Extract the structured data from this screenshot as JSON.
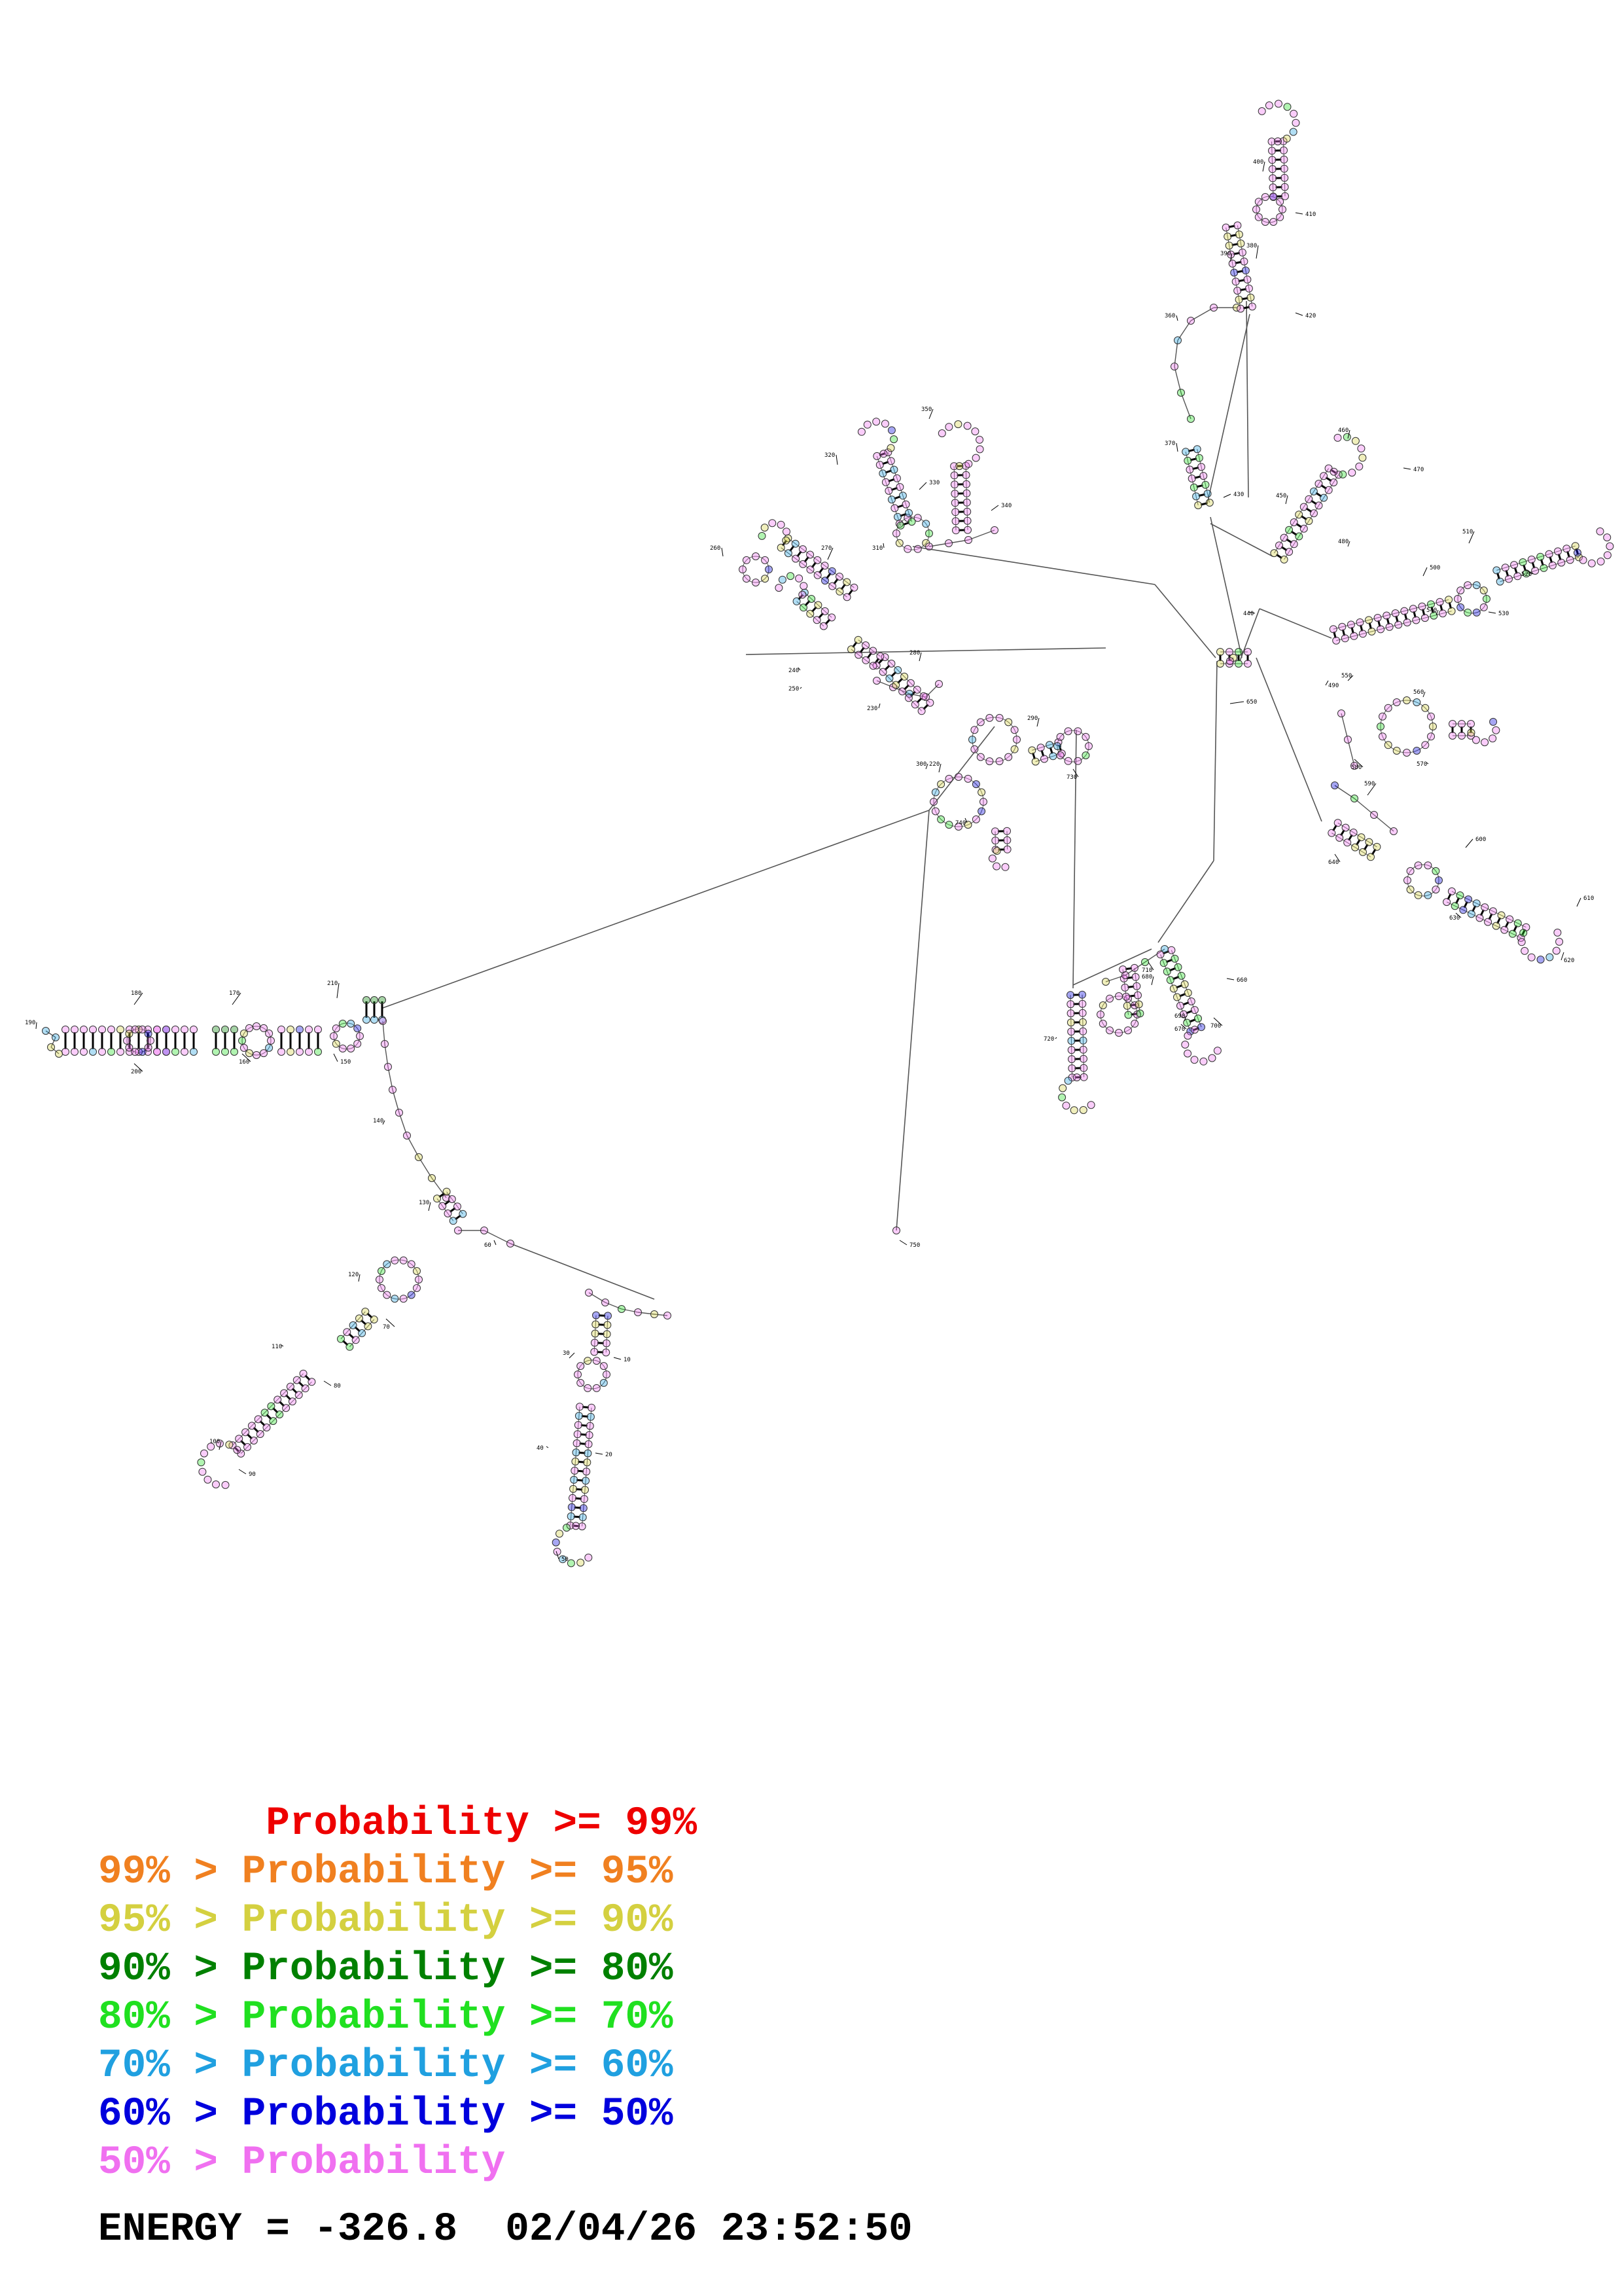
{
  "colors": {
    "p99": "#ee0000",
    "p95": "#f08020",
    "p90": "#d4d040",
    "p80": "#008000",
    "p70": "#20e020",
    "p60": "#20a0e0",
    "p50": "#0000dd",
    "plow": "#f070f0",
    "backbone": "#555555"
  },
  "legend": [
    {
      "text": "       Probability >= 99%",
      "level": "p99"
    },
    {
      "text": "99% > Probability >= 95%",
      "level": "p95"
    },
    {
      "text": "95% > Probability >= 90%",
      "level": "p90"
    },
    {
      "text": "90% > Probability >= 80%",
      "level": "p80"
    },
    {
      "text": "80% > Probability >= 70%",
      "level": "p70"
    },
    {
      "text": "70% > Probability >= 60%",
      "level": "p60"
    },
    {
      "text": "60% > Probability >= 50%",
      "level": "p50"
    },
    {
      "text": "50% > Probability",
      "level": "plow"
    }
  ],
  "energy_line": "ENERGY = -326.8  02/04/26 23:52:50",
  "position_labels": [
    "10",
    "20",
    "30",
    "40",
    "50",
    "60",
    "70",
    "80",
    "90",
    "100",
    "110",
    "120",
    "130",
    "140",
    "150",
    "160",
    "170",
    "180",
    "190",
    "200",
    "210",
    "220",
    "230",
    "240",
    "250",
    "260",
    "270",
    "280",
    "290",
    "300",
    "310",
    "320",
    "330",
    "340",
    "350",
    "360",
    "370",
    "380",
    "390",
    "400",
    "410",
    "420",
    "430",
    "440",
    "450",
    "460",
    "470",
    "480",
    "490",
    "500",
    "510",
    "520",
    "530",
    "540",
    "550",
    "560",
    "570",
    "580",
    "590",
    "600",
    "610",
    "620",
    "630",
    "640",
    "650",
    "660",
    "670",
    "680",
    "690",
    "700",
    "710",
    "720",
    "730",
    "740",
    "750"
  ]
}
